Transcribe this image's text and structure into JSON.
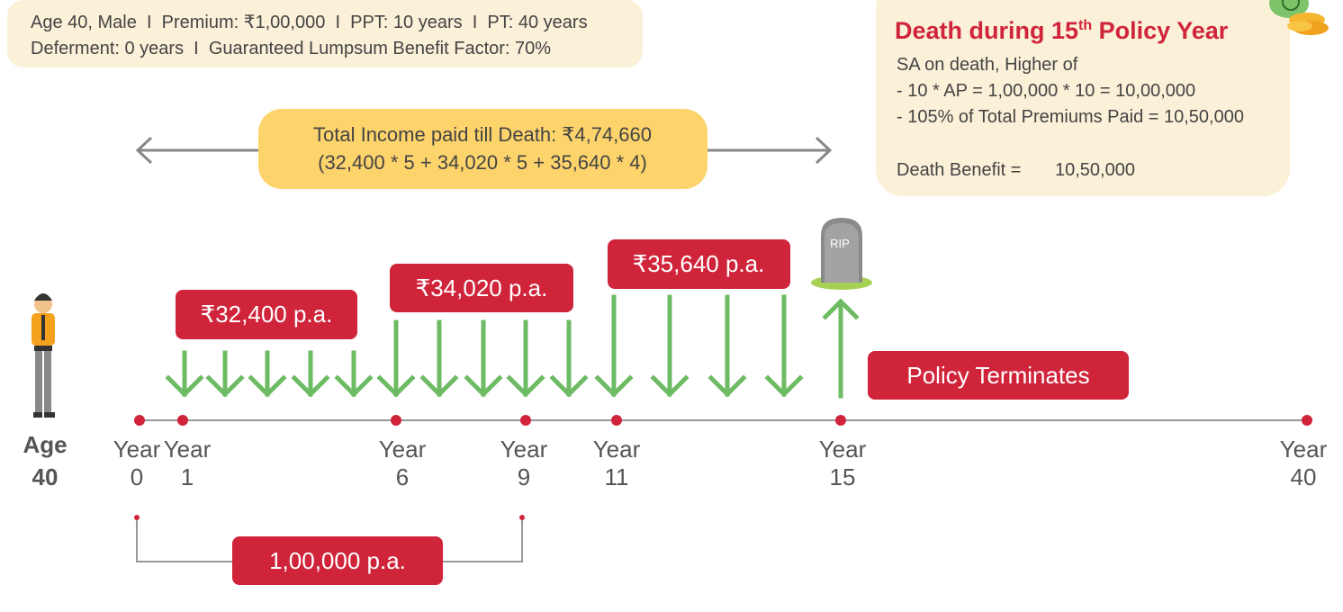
{
  "header": {
    "line1": "Age 40, Male  I  Premium: ₹1,00,000  I  PPT: 10 years  I  PT: 40 years",
    "line2": "Deferment: 0 years  I  Guaranteed Lumpsum Benefit Factor: 70%"
  },
  "death_box": {
    "title": "Death during 15",
    "title_sup": "th",
    "title_end": " Policy Year",
    "lines": [
      "SA on death, Higher of",
      "- 10 * AP = 1,00,000 * 10 = 10,00,000",
      "- 105% of Total Premiums Paid = 10,50,000"
    ],
    "benefit_label": "Death Benefit =",
    "benefit_value": "10,50,000"
  },
  "income_summary": {
    "line1": "Total Income paid till Death: ₹4,74,660",
    "line2": "(32,400 * 5 + 34,020 * 5 + 35,640 * 4)"
  },
  "income_labels": [
    "₹32,400 p.a.",
    "₹34,020 p.a.",
    "₹35,640 p.a."
  ],
  "terminates": "Policy Terminates",
  "rip": "RIP",
  "age": {
    "label": "Age",
    "value": "40"
  },
  "timeline": [
    {
      "label": "Year",
      "year": "0"
    },
    {
      "label": "Year",
      "year": "1"
    },
    {
      "label": "Year",
      "year": "6"
    },
    {
      "label": "Year",
      "year": "9"
    },
    {
      "label": "Year",
      "year": "11"
    },
    {
      "label": "Year",
      "year": "15"
    },
    {
      "label": "Year",
      "year": "40"
    }
  ],
  "premium": "1,00,000 p.a."
}
